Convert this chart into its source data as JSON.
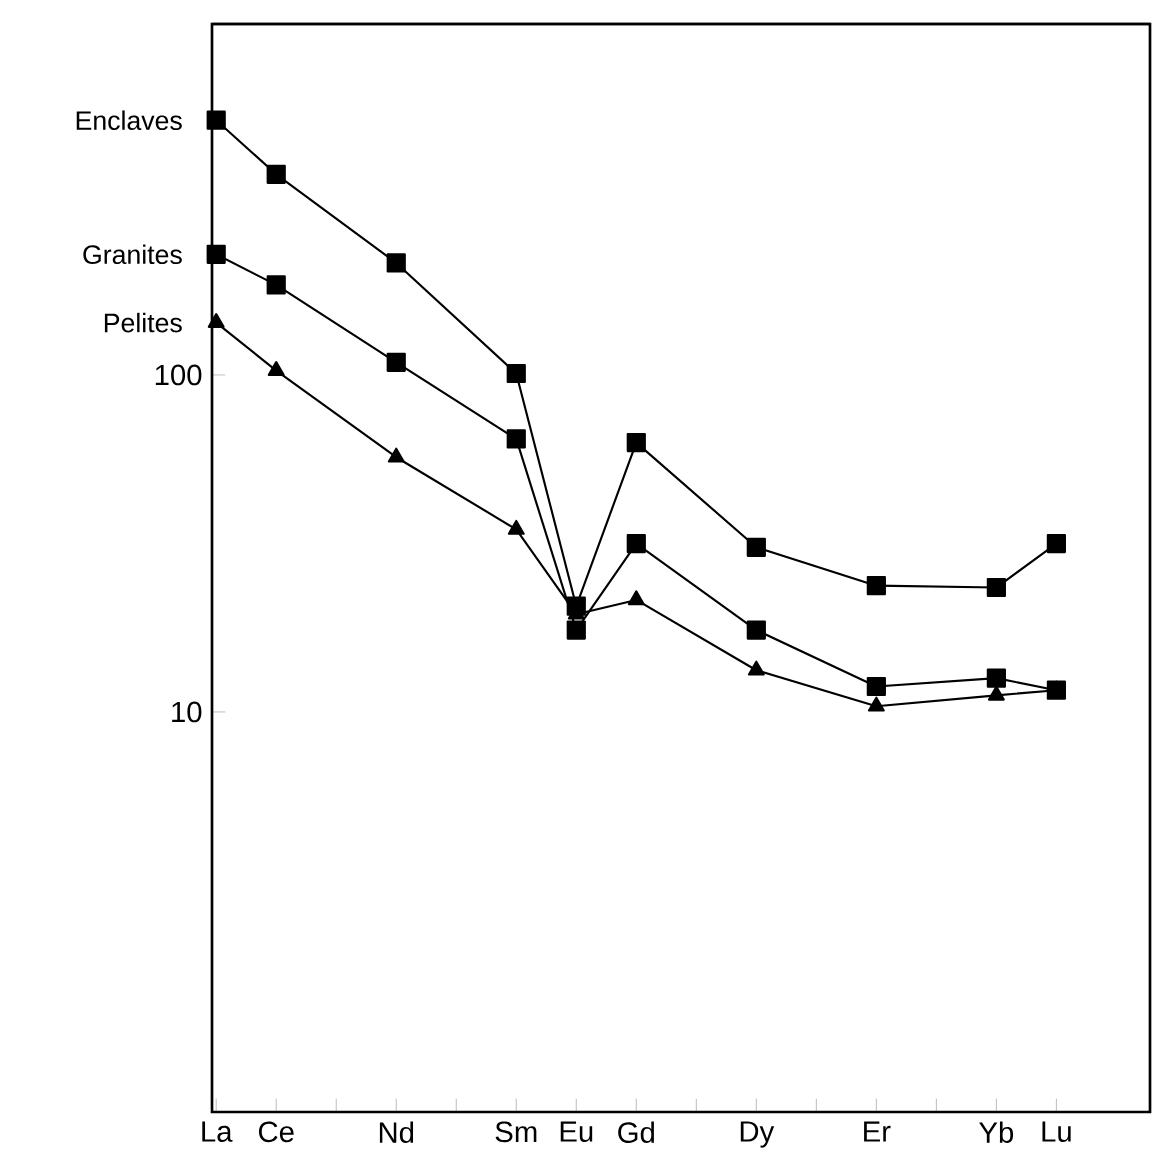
{
  "chart_data": {
    "type": "line",
    "log": "y",
    "ylim": [
      0.65,
      1100
    ],
    "yticks": [
      10,
      100
    ],
    "categories": [
      "La",
      "Ce",
      null,
      "Nd",
      null,
      "Sm",
      "Eu",
      "Gd",
      null,
      "Dy",
      null,
      "Er",
      null,
      "Yb",
      "Lu"
    ],
    "series": [
      {
        "name": "Enclaves",
        "color": "#000000",
        "marker": "square",
        "values": [
          570,
          394,
          null,
          215,
          null,
          101,
          20.6,
          63,
          null,
          30.8,
          null,
          23.7,
          null,
          23.4,
          31.6
        ]
      },
      {
        "name": "Granites",
        "color": "#000000",
        "marker": "square",
        "values": [
          228,
          185,
          null,
          109,
          null,
          64.6,
          17.5,
          31.6,
          null,
          17.5,
          null,
          11.9,
          null,
          12.6,
          11.6
        ]
      },
      {
        "name": "Pelites",
        "color": "#000000",
        "marker": "triangle",
        "values": [
          143,
          103,
          null,
          57,
          null,
          34.8,
          19.5,
          21.5,
          null,
          13.3,
          null,
          10.4,
          null,
          11.2,
          11.6
        ]
      }
    ]
  }
}
